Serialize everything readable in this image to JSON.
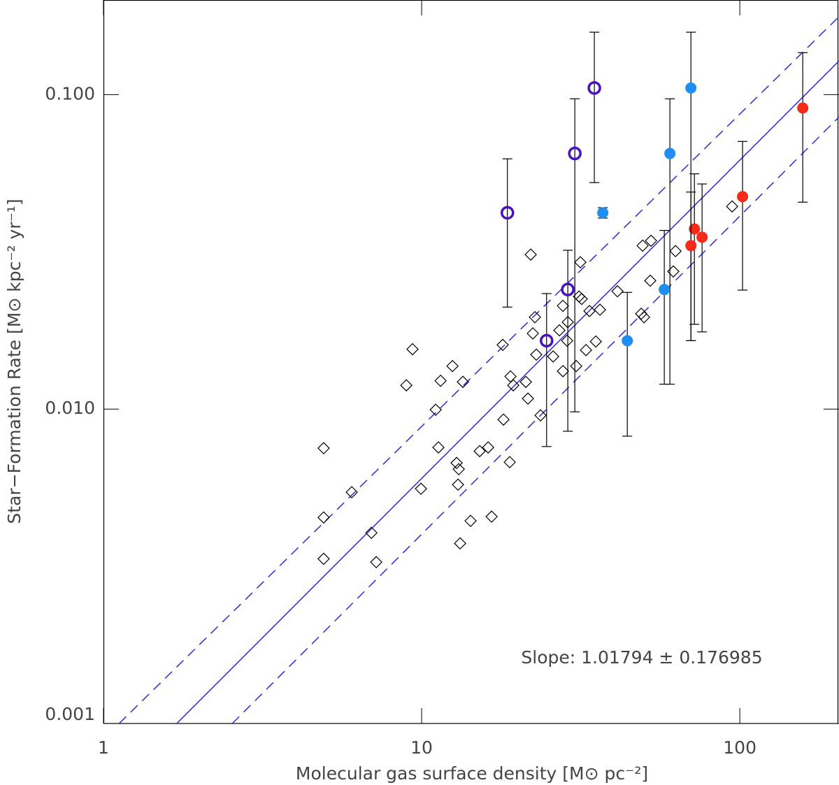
{
  "chart_data": {
    "type": "scatter",
    "xlabel": "Molecular gas surface density [M⊙ pc⁻²]",
    "ylabel": "Star−Formation Rate [M⊙ kpc⁻² yr⁻¹]",
    "annotation": "Slope: 1.01794 ± 0.176985",
    "xscale": "log",
    "yscale": "log",
    "xlim": [
      1,
      205
    ],
    "ylim": [
      0.001,
      0.2
    ],
    "xticks": [
      1,
      10,
      100
    ],
    "yticks": [
      {
        "value": 0.001,
        "label": "0.001"
      },
      {
        "value": 0.01,
        "label": "0.010"
      },
      {
        "value": 0.1,
        "label": "0.100"
      }
    ],
    "lines": [
      {
        "style": "solid",
        "color": "#2b2bdc",
        "x": [
          1.7,
          205
        ],
        "y": [
          0.001,
          0.128
        ]
      },
      {
        "style": "dashed",
        "color": "#2b2bdc",
        "x": [
          1.12,
          205
        ],
        "y": [
          0.001,
          0.177
        ]
      },
      {
        "style": "dashed",
        "color": "#2b2bdc",
        "x": [
          2.54,
          205
        ],
        "y": [
          0.001,
          0.0849
        ]
      }
    ],
    "series": [
      {
        "marker": "diamond",
        "color": "#000000",
        "x": [
          4.92,
          4.92,
          4.92,
          6.03,
          6.95,
          7.2,
          8.95,
          9.36,
          9.95,
          11.07,
          11.29,
          11.47,
          12.5,
          12.88,
          13.01,
          13.08,
          13.21,
          13.48,
          14.25,
          15.22,
          16.18,
          16.59,
          17.98,
          18.08,
          18.92,
          19.02,
          19.41,
          21.26,
          21.58,
          22.02,
          22.36,
          22.7,
          22.93,
          23.64,
          25.9,
          27.1,
          27.8,
          27.8,
          28.66,
          28.8,
          30.6,
          31.23,
          31.54,
          31.86,
          32.85,
          33.69,
          35.27,
          36.35,
          41.25,
          48.98,
          50.0,
          49.5,
          52.6,
          52.3,
          61.8,
          62.8,
          94.6
        ],
        "values": [
          0.00751,
          0.00452,
          0.00334,
          0.00544,
          0.00404,
          0.00326,
          0.0119,
          0.0155,
          0.00558,
          0.00995,
          0.00755,
          0.0123,
          0.0137,
          0.00674,
          0.00575,
          0.00644,
          0.00374,
          0.0122,
          0.00441,
          0.00735,
          0.00755,
          0.00455,
          0.016,
          0.00926,
          0.00678,
          0.0127,
          0.0119,
          0.0122,
          0.0108,
          0.031,
          0.0174,
          0.0196,
          0.0149,
          0.00955,
          0.0147,
          0.0178,
          0.0213,
          0.0132,
          0.0165,
          0.0189,
          0.0137,
          0.0228,
          0.0293,
          0.0224,
          0.0154,
          0.0205,
          0.0164,
          0.0207,
          0.0237,
          0.0201,
          0.0196,
          0.0331,
          0.0343,
          0.0256,
          0.0274,
          0.0318,
          0.0441
        ]
      },
      {
        "marker": "open-circle",
        "color": "#4b10c0",
        "x": [
          18.6,
          30.3,
          34.9,
          28.8,
          24.7
        ],
        "values": [
          0.0421,
          0.065,
          0.105,
          0.024,
          0.0165
        ],
        "ylow": [
          0.0211,
          0.0098,
          0.0525,
          0.0085,
          0.0076
        ],
        "yhigh": [
          0.0625,
          0.097,
          0.158,
          0.032,
          0.0233
        ]
      },
      {
        "marker": "filled-circle",
        "color": "#1e8ef0",
        "x": [
          70.2,
          60.3,
          37.1,
          57.9,
          44.3
        ],
        "values": [
          0.105,
          0.065,
          0.0421,
          0.024,
          0.0165
        ],
        "ylow": [
          0.0165,
          0.012,
          0.0405,
          0.012,
          0.0082
        ],
        "yhigh": [
          0.158,
          0.097,
          0.0437,
          0.037,
          0.0235
        ]
      },
      {
        "marker": "filled-circle",
        "color": "#f52a18",
        "x": [
          157.7,
          102,
          72.0,
          70.2,
          76.1
        ],
        "values": [
          0.0907,
          0.0474,
          0.0374,
          0.0331,
          0.0352
        ],
        "ylow": [
          0.0455,
          0.0239,
          0.0186,
          0.0165,
          0.0176
        ],
        "yhigh": [
          0.136,
          0.071,
          0.056,
          0.049,
          0.052
        ]
      }
    ]
  }
}
